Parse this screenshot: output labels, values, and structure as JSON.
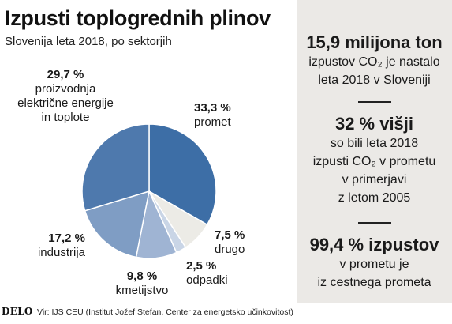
{
  "header": {
    "title": "Izpusti toplogrednih plinov",
    "subtitle": "Slovenija leta 2018, po sektorjih"
  },
  "chart_data": {
    "type": "pie",
    "title": "Izpusti toplogrednih plinov",
    "subtitle": "Slovenija leta 2018, po sektorjih",
    "slices": [
      {
        "label": "promet",
        "value": 33.3,
        "display": "33,3 %",
        "color": "#3d6ea6"
      },
      {
        "label": "drugo",
        "value": 7.5,
        "display": "7,5 %",
        "color": "#ecebe6"
      },
      {
        "label": "odpadki",
        "value": 2.5,
        "display": "2,5 %",
        "color": "#c9d5e6"
      },
      {
        "label": "kmetijstvo",
        "value": 9.8,
        "display": "9,8 %",
        "color": "#9fb4d3"
      },
      {
        "label": "industrija",
        "value": 17.2,
        "display": "17,2 %",
        "color": "#7f9dc4"
      },
      {
        "label": "proizvodnja električne energije in toplote",
        "value": 29.7,
        "display": "29,7 %",
        "color": "#4e79ad"
      }
    ]
  },
  "labels": {
    "energy": {
      "pct": "29,7 %",
      "lines": [
        "proizvodnja",
        "električne energije",
        "in toplote"
      ]
    },
    "transport": {
      "pct": "33,3 %",
      "lines": [
        "promet"
      ]
    },
    "other": {
      "pct": "7,5 %",
      "lines": [
        "drugo"
      ]
    },
    "waste": {
      "pct": "2,5 %",
      "lines": [
        "odpadki"
      ]
    },
    "agriculture": {
      "pct": "9,8 %",
      "lines": [
        "kmetijstvo"
      ]
    },
    "industry": {
      "pct": "17,2 %",
      "lines": [
        "industrija"
      ]
    }
  },
  "panel": {
    "stat1": {
      "big": "15,9 milijona ton",
      "lines": [
        "izpustov CO₂ je nastalo",
        "leta 2018 v Sloveniji"
      ]
    },
    "stat2": {
      "big": "32 % višji",
      "lines": [
        "so bili leta 2018",
        "izpusti CO₂ v prometu",
        "v primerjavi",
        "z letom 2005"
      ]
    },
    "stat3": {
      "big": "99,4 % izpustov",
      "lines": [
        "v prometu je",
        "iz cestnega prometa"
      ]
    }
  },
  "footer": {
    "logo": "DELO",
    "source": "Vir: IJS CEU (Institut Jožef Stefan, Center za energetsko učinkovitost)"
  }
}
